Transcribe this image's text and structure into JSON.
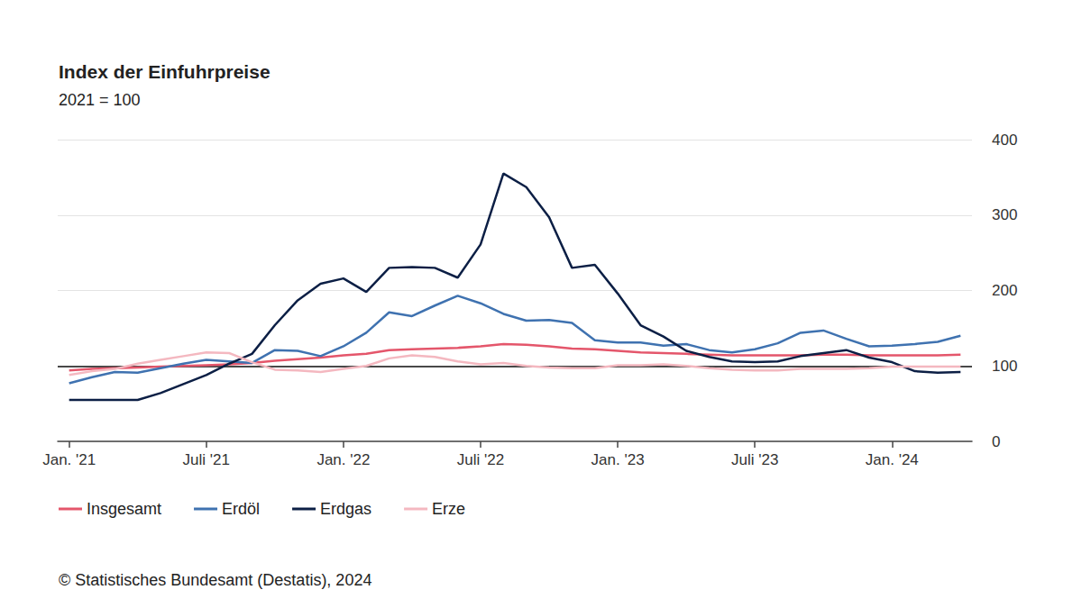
{
  "chart_data": {
    "type": "line",
    "title": "Index der Einfuhrpreise",
    "subtitle": "2021 = 100",
    "source": "© Statistisches Bundesamt (Destatis), 2024",
    "categories": [
      "Jan. '21",
      null,
      null,
      null,
      null,
      null,
      "Juli '21",
      null,
      null,
      null,
      null,
      null,
      "Jan. '22",
      null,
      null,
      null,
      null,
      null,
      "Juli '22",
      null,
      null,
      null,
      null,
      null,
      "Jan. '23",
      null,
      null,
      null,
      null,
      null,
      "Juli '23",
      null,
      null,
      null,
      null,
      null,
      "Jan. '24",
      null,
      null,
      null
    ],
    "series": [
      {
        "name": "Insgesamt",
        "color": "#e4566b",
        "values": [
          94,
          96,
          97,
          98,
          99,
          100,
          101,
          102,
          104,
          107,
          109,
          111,
          114,
          116,
          121,
          122,
          123,
          124,
          126,
          129,
          128,
          126,
          123,
          122,
          120,
          118,
          117,
          116,
          115,
          114,
          114,
          114,
          114,
          115,
          115,
          114,
          114,
          114,
          114,
          115
        ]
      },
      {
        "name": "Erdöl",
        "color": "#3f72b0",
        "values": [
          77,
          85,
          92,
          91,
          97,
          103,
          108,
          106,
          104,
          121,
          120,
          113,
          126,
          144,
          171,
          166,
          180,
          193,
          183,
          169,
          160,
          161,
          157,
          134,
          131,
          131,
          127,
          129,
          121,
          118,
          122,
          130,
          144,
          147,
          136,
          126,
          127,
          129,
          132,
          140
        ]
      },
      {
        "name": "Erdgas",
        "color": "#0c1f45",
        "values": [
          55,
          55,
          55,
          55,
          64,
          76,
          88,
          103,
          116,
          154,
          187,
          209,
          216,
          198,
          230,
          231,
          230,
          217,
          261,
          355,
          337,
          297,
          230,
          234,
          196,
          154,
          139,
          120,
          112,
          106,
          105,
          106,
          113,
          117,
          121,
          111,
          105,
          93,
          91,
          92
        ]
      },
      {
        "name": "Erze",
        "color": "#f4b8c0",
        "values": [
          88,
          93,
          96,
          103,
          108,
          113,
          118,
          117,
          105,
          95,
          94,
          92,
          96,
          100,
          110,
          114,
          112,
          106,
          102,
          104,
          100,
          98,
          97,
          97,
          101,
          101,
          102,
          100,
          97,
          95,
          94,
          94,
          96,
          96,
          96,
          97,
          99,
          99,
          99,
          99
        ]
      }
    ],
    "baseline": 100,
    "ylim": [
      0,
      400
    ],
    "yticks": [
      0,
      100,
      200,
      300,
      400
    ],
    "grid": true,
    "legend": "bottom-left"
  }
}
